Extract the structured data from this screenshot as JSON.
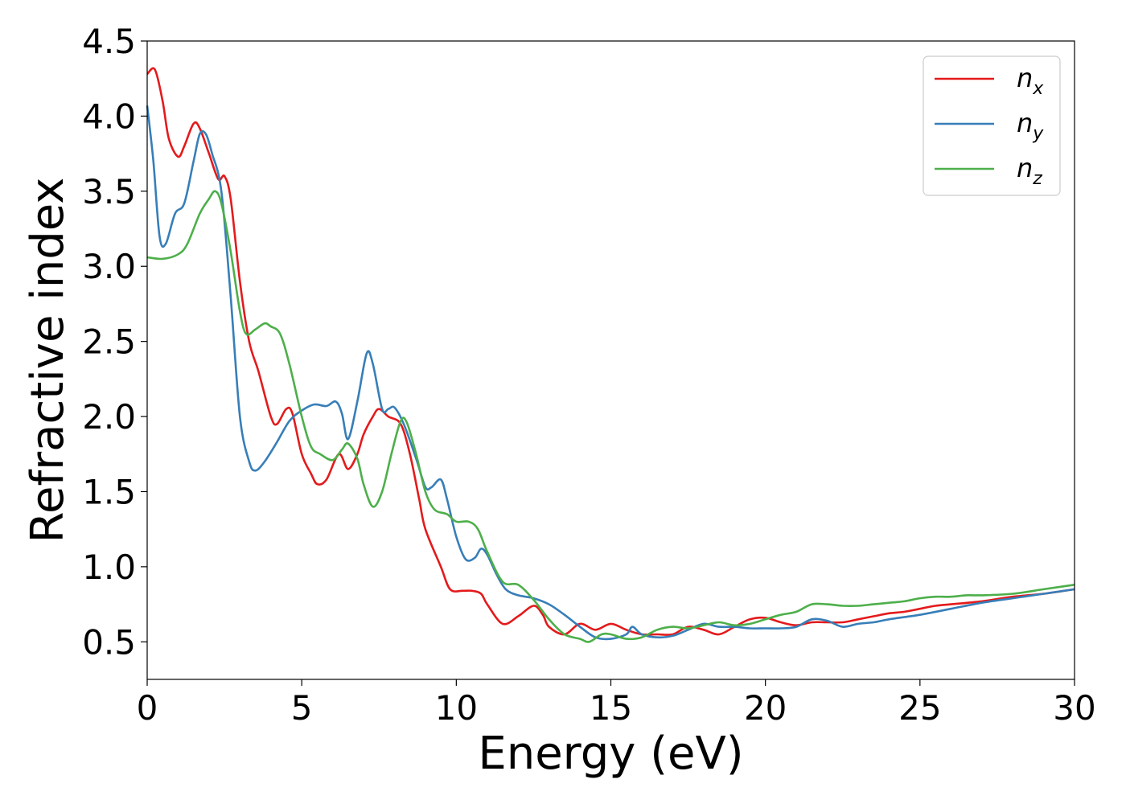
{
  "chart_data": {
    "type": "line",
    "title": "",
    "xlabel": "Energy (eV)",
    "ylabel": "Refractive index",
    "xlim": [
      0,
      30
    ],
    "ylim": [
      0.25,
      4.5
    ],
    "xticks": [
      0,
      5,
      10,
      15,
      20,
      25,
      30
    ],
    "xtick_labels": [
      "0",
      "5",
      "10",
      "15",
      "20",
      "25",
      "30"
    ],
    "yticks": [
      0.5,
      1.0,
      1.5,
      2.0,
      2.5,
      3.0,
      3.5,
      4.0,
      4.5
    ],
    "ytick_labels": [
      "0.5",
      "1.0",
      "1.5",
      "2.0",
      "2.5",
      "3.0",
      "3.5",
      "4.0",
      "4.5"
    ],
    "grid": false,
    "legend_position": "top-right",
    "series": [
      {
        "name": "n",
        "subscript": "x",
        "color": "#e41a1c",
        "points": [
          [
            0,
            4.28
          ],
          [
            0.25,
            4.31
          ],
          [
            0.5,
            4.1
          ],
          [
            0.7,
            3.85
          ],
          [
            1.0,
            3.73
          ],
          [
            1.2,
            3.8
          ],
          [
            1.5,
            3.95
          ],
          [
            1.7,
            3.92
          ],
          [
            2.0,
            3.75
          ],
          [
            2.3,
            3.58
          ],
          [
            2.5,
            3.6
          ],
          [
            2.7,
            3.45
          ],
          [
            3.0,
            2.9
          ],
          [
            3.3,
            2.5
          ],
          [
            3.6,
            2.3
          ],
          [
            4.0,
            2.0
          ],
          [
            4.2,
            1.95
          ],
          [
            4.5,
            2.05
          ],
          [
            4.7,
            2.02
          ],
          [
            5.0,
            1.75
          ],
          [
            5.3,
            1.62
          ],
          [
            5.5,
            1.55
          ],
          [
            5.8,
            1.58
          ],
          [
            6.2,
            1.75
          ],
          [
            6.5,
            1.65
          ],
          [
            6.8,
            1.75
          ],
          [
            7.0,
            1.88
          ],
          [
            7.3,
            2.0
          ],
          [
            7.5,
            2.05
          ],
          [
            7.8,
            2.0
          ],
          [
            8.2,
            1.95
          ],
          [
            8.5,
            1.75
          ],
          [
            8.8,
            1.45
          ],
          [
            9.0,
            1.25
          ],
          [
            9.5,
            1.0
          ],
          [
            9.8,
            0.85
          ],
          [
            10.2,
            0.84
          ],
          [
            10.5,
            0.84
          ],
          [
            10.8,
            0.82
          ],
          [
            11.0,
            0.75
          ],
          [
            11.5,
            0.62
          ],
          [
            12.0,
            0.67
          ],
          [
            12.5,
            0.74
          ],
          [
            12.8,
            0.68
          ],
          [
            13.0,
            0.6
          ],
          [
            13.5,
            0.55
          ],
          [
            14.0,
            0.62
          ],
          [
            14.5,
            0.58
          ],
          [
            15.0,
            0.62
          ],
          [
            15.5,
            0.58
          ],
          [
            16.0,
            0.55
          ],
          [
            16.5,
            0.55
          ],
          [
            17.0,
            0.55
          ],
          [
            17.5,
            0.6
          ],
          [
            18.0,
            0.58
          ],
          [
            18.5,
            0.55
          ],
          [
            19.0,
            0.6
          ],
          [
            19.5,
            0.65
          ],
          [
            20.0,
            0.66
          ],
          [
            20.5,
            0.63
          ],
          [
            21.0,
            0.61
          ],
          [
            21.5,
            0.63
          ],
          [
            22.0,
            0.63
          ],
          [
            22.5,
            0.63
          ],
          [
            23.0,
            0.65
          ],
          [
            23.5,
            0.67
          ],
          [
            24.0,
            0.69
          ],
          [
            24.5,
            0.7
          ],
          [
            25.0,
            0.72
          ],
          [
            25.5,
            0.74
          ],
          [
            26.0,
            0.75
          ],
          [
            27.0,
            0.77
          ],
          [
            28.0,
            0.8
          ],
          [
            29.0,
            0.82
          ],
          [
            30.0,
            0.85
          ]
        ]
      },
      {
        "name": "n",
        "subscript": "y",
        "color": "#377eb8",
        "points": [
          [
            0,
            4.07
          ],
          [
            0.2,
            3.7
          ],
          [
            0.4,
            3.2
          ],
          [
            0.6,
            3.15
          ],
          [
            0.9,
            3.35
          ],
          [
            1.2,
            3.42
          ],
          [
            1.5,
            3.7
          ],
          [
            1.7,
            3.88
          ],
          [
            1.9,
            3.88
          ],
          [
            2.1,
            3.75
          ],
          [
            2.4,
            3.5
          ],
          [
            2.7,
            2.8
          ],
          [
            3.0,
            2.0
          ],
          [
            3.3,
            1.7
          ],
          [
            3.5,
            1.64
          ],
          [
            3.8,
            1.7
          ],
          [
            4.2,
            1.83
          ],
          [
            4.6,
            1.97
          ],
          [
            5.0,
            2.04
          ],
          [
            5.4,
            2.08
          ],
          [
            5.8,
            2.07
          ],
          [
            6.1,
            2.1
          ],
          [
            6.3,
            2.02
          ],
          [
            6.5,
            1.85
          ],
          [
            6.8,
            2.1
          ],
          [
            7.1,
            2.42
          ],
          [
            7.3,
            2.35
          ],
          [
            7.6,
            2.05
          ],
          [
            7.8,
            2.05
          ],
          [
            8.0,
            2.06
          ],
          [
            8.3,
            1.95
          ],
          [
            8.7,
            1.72
          ],
          [
            9.0,
            1.53
          ],
          [
            9.2,
            1.53
          ],
          [
            9.5,
            1.58
          ],
          [
            9.7,
            1.45
          ],
          [
            10.0,
            1.2
          ],
          [
            10.3,
            1.05
          ],
          [
            10.6,
            1.06
          ],
          [
            10.8,
            1.12
          ],
          [
            11.0,
            1.08
          ],
          [
            11.3,
            0.95
          ],
          [
            11.6,
            0.85
          ],
          [
            12.0,
            0.81
          ],
          [
            12.5,
            0.79
          ],
          [
            13.0,
            0.75
          ],
          [
            13.5,
            0.68
          ],
          [
            14.0,
            0.6
          ],
          [
            14.5,
            0.53
          ],
          [
            15.0,
            0.52
          ],
          [
            15.5,
            0.55
          ],
          [
            15.7,
            0.6
          ],
          [
            16.0,
            0.55
          ],
          [
            16.5,
            0.53
          ],
          [
            17.0,
            0.54
          ],
          [
            17.5,
            0.58
          ],
          [
            18.0,
            0.62
          ],
          [
            18.5,
            0.6
          ],
          [
            19.0,
            0.6
          ],
          [
            19.5,
            0.59
          ],
          [
            20.0,
            0.59
          ],
          [
            20.5,
            0.59
          ],
          [
            21.0,
            0.6
          ],
          [
            21.5,
            0.65
          ],
          [
            22.0,
            0.64
          ],
          [
            22.5,
            0.6
          ],
          [
            23.0,
            0.62
          ],
          [
            23.5,
            0.63
          ],
          [
            24.0,
            0.65
          ],
          [
            25.0,
            0.68
          ],
          [
            26.0,
            0.72
          ],
          [
            27.0,
            0.76
          ],
          [
            28.0,
            0.79
          ],
          [
            29.0,
            0.82
          ],
          [
            30.0,
            0.85
          ]
        ]
      },
      {
        "name": "n",
        "subscript": "z",
        "color": "#4daf4a",
        "points": [
          [
            0,
            3.06
          ],
          [
            0.5,
            3.05
          ],
          [
            1.0,
            3.08
          ],
          [
            1.3,
            3.15
          ],
          [
            1.7,
            3.35
          ],
          [
            2.0,
            3.45
          ],
          [
            2.2,
            3.5
          ],
          [
            2.4,
            3.42
          ],
          [
            2.7,
            3.1
          ],
          [
            3.0,
            2.7
          ],
          [
            3.2,
            2.55
          ],
          [
            3.5,
            2.58
          ],
          [
            3.8,
            2.62
          ],
          [
            4.0,
            2.6
          ],
          [
            4.3,
            2.55
          ],
          [
            4.6,
            2.35
          ],
          [
            5.0,
            2.0
          ],
          [
            5.3,
            1.8
          ],
          [
            5.6,
            1.75
          ],
          [
            6.0,
            1.71
          ],
          [
            6.3,
            1.78
          ],
          [
            6.5,
            1.82
          ],
          [
            6.8,
            1.72
          ],
          [
            7.0,
            1.55
          ],
          [
            7.3,
            1.4
          ],
          [
            7.6,
            1.5
          ],
          [
            7.9,
            1.75
          ],
          [
            8.2,
            1.97
          ],
          [
            8.4,
            1.96
          ],
          [
            8.7,
            1.75
          ],
          [
            9.0,
            1.5
          ],
          [
            9.3,
            1.38
          ],
          [
            9.7,
            1.35
          ],
          [
            10.0,
            1.3
          ],
          [
            10.4,
            1.3
          ],
          [
            10.7,
            1.25
          ],
          [
            11.0,
            1.1
          ],
          [
            11.5,
            0.9
          ],
          [
            12.0,
            0.88
          ],
          [
            12.5,
            0.78
          ],
          [
            13.0,
            0.65
          ],
          [
            13.5,
            0.55
          ],
          [
            14.0,
            0.52
          ],
          [
            14.3,
            0.5
          ],
          [
            14.7,
            0.55
          ],
          [
            15.0,
            0.55
          ],
          [
            15.5,
            0.52
          ],
          [
            16.0,
            0.53
          ],
          [
            16.5,
            0.58
          ],
          [
            17.0,
            0.6
          ],
          [
            17.5,
            0.59
          ],
          [
            18.0,
            0.61
          ],
          [
            18.5,
            0.63
          ],
          [
            19.0,
            0.61
          ],
          [
            19.5,
            0.62
          ],
          [
            20.0,
            0.65
          ],
          [
            20.5,
            0.68
          ],
          [
            21.0,
            0.7
          ],
          [
            21.5,
            0.75
          ],
          [
            22.0,
            0.75
          ],
          [
            22.5,
            0.74
          ],
          [
            23.0,
            0.74
          ],
          [
            23.5,
            0.75
          ],
          [
            24.0,
            0.76
          ],
          [
            24.5,
            0.77
          ],
          [
            25.0,
            0.79
          ],
          [
            25.5,
            0.8
          ],
          [
            26.0,
            0.8
          ],
          [
            26.5,
            0.81
          ],
          [
            27.0,
            0.81
          ],
          [
            28.0,
            0.82
          ],
          [
            29.0,
            0.85
          ],
          [
            30.0,
            0.88
          ]
        ]
      }
    ]
  }
}
